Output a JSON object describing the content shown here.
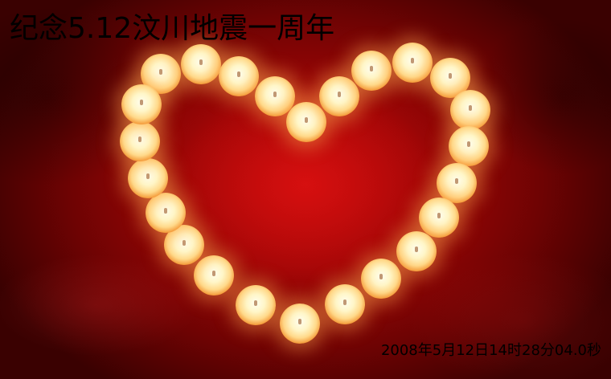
{
  "title": "纪念5.12汶川地震一周年",
  "timestamp": "2008年5月12日14时28分04.0秒",
  "colors": {
    "background": "#a00606",
    "candle_light": "#fff6c8",
    "text": "#000000"
  }
}
